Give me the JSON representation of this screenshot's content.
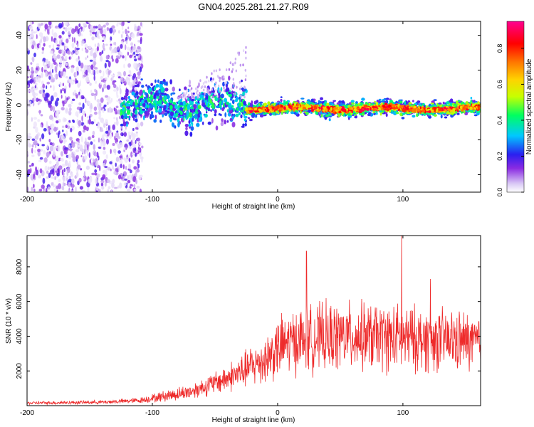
{
  "figure_title": "GN04.2025.281.21.27.R09",
  "chart_data": [
    {
      "type": "heatmap",
      "name": "spectrogram",
      "xlabel": "Height of straight line (km)",
      "ylabel": "Frequency (Hz)",
      "xlim": [
        -200,
        162
      ],
      "ylim": [
        -50,
        48
      ],
      "xticks": [
        -200,
        -100,
        0,
        100
      ],
      "xtick_labels": [
        "-200",
        "-100",
        "0",
        "100"
      ],
      "yticks": [
        -40,
        -20,
        0,
        20,
        40
      ],
      "ytick_labels": [
        "-40",
        "-20",
        "0",
        "20",
        "40"
      ],
      "colorbar": {
        "label": "Normalized spectral amplitude",
        "range": [
          0,
          0.95
        ],
        "ticks": [
          0,
          0.2,
          0.4,
          0.6,
          0.8
        ],
        "tick_labels": [
          "0.0",
          "0.2",
          "0.4",
          "0.6",
          "0.8"
        ],
        "colors": [
          "#ffffff",
          "#d9c8f5",
          "#8a2be2",
          "#2a1ff0",
          "#00c8ff",
          "#00ff60",
          "#c8ff00",
          "#ffd200",
          "#ff7800",
          "#ff0000",
          "#ff0090"
        ]
      },
      "regions": [
        {
          "x_range": [
            -200,
            -112
          ],
          "freq_range": [
            -50,
            48
          ],
          "description_amplitude": [
            0.02,
            0.2
          ]
        },
        {
          "x_range": [
            -125,
            -25
          ],
          "freq_center": 0,
          "freq_spread": 8,
          "description_amplitude": [
            0.15,
            0.5
          ]
        },
        {
          "x_range": [
            -25,
            162
          ],
          "freq_center": -2,
          "freq_spread": 3,
          "description_amplitude": [
            0.3,
            0.9
          ]
        }
      ]
    },
    {
      "type": "line",
      "name": "snr",
      "xlabel": "Height of straight line (km)",
      "ylabel": "SNR (10 * v/v)",
      "xlim": [
        -200,
        162
      ],
      "ylim": [
        0,
        9800
      ],
      "xticks": [
        -200,
        -100,
        0,
        100
      ],
      "xtick_labels": [
        "-200",
        "-100",
        "0",
        "100"
      ],
      "yticks": [
        2000,
        4000,
        6000,
        8000
      ],
      "ytick_labels": [
        "2000",
        "4000",
        "6000",
        "8000"
      ],
      "color": "#ee2b2b",
      "envelope": {
        "x": [
          -200,
          -140,
          -110,
          -90,
          -70,
          -50,
          -30,
          -10,
          0,
          10,
          30,
          60,
          90,
          120,
          150,
          162
        ],
        "mean": [
          150,
          200,
          300,
          550,
          800,
          1300,
          1900,
          2700,
          3300,
          3700,
          3900,
          4000,
          3900,
          3800,
          3700,
          3600
        ],
        "spread": [
          80,
          100,
          150,
          300,
          400,
          600,
          900,
          1300,
          1600,
          1700,
          1800,
          1800,
          1800,
          1700,
          1600,
          1500
        ]
      },
      "peaks": [
        {
          "x": 23,
          "y": 8900
        },
        {
          "x": 99,
          "y": 9800
        },
        {
          "x": 122,
          "y": 7300
        }
      ]
    }
  ]
}
